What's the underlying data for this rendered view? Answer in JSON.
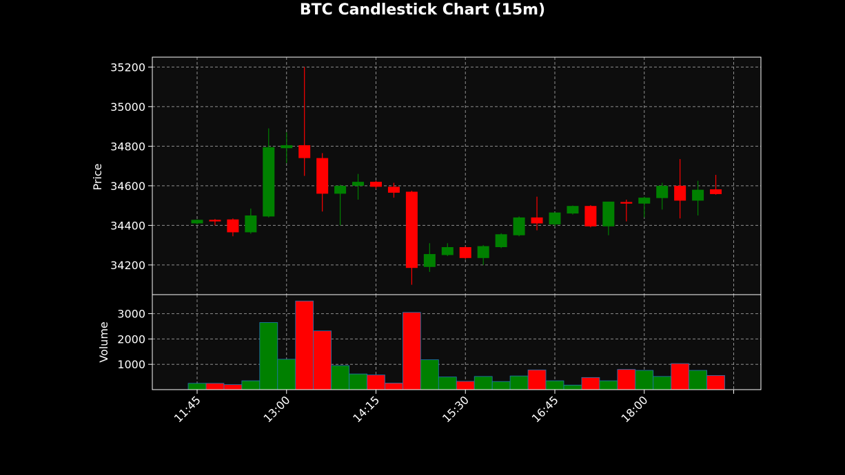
{
  "chart_data": {
    "type": "candlestick",
    "title": "BTC Candlestick Chart (15m)",
    "price_panel": {
      "ylabel": "Price",
      "ylim": [
        34050,
        35250
      ],
      "yticks": [
        34200,
        34400,
        34600,
        34800,
        35000,
        35200
      ],
      "grid": true
    },
    "volume_panel": {
      "ylabel": "Volume",
      "ylim": [
        0,
        3750
      ],
      "yticks": [
        1000,
        2000,
        3000
      ],
      "grid": true
    },
    "x_tick_labels": [
      "11:45",
      "13:00",
      "14:15",
      "15:30",
      "16:45",
      "18:00"
    ],
    "colors": {
      "up": "#008000",
      "down": "#ff0000",
      "panel_bg": "#0d0d0d",
      "figure_bg": "#000000",
      "grid": "#b0b0b0",
      "text": "#ffffff",
      "volume_edge": "#1f77b4"
    },
    "candles": [
      {
        "time": "11:45",
        "open": 34410,
        "high": 34430,
        "low": 34405,
        "close": 34428,
        "volume": 250
      },
      {
        "time": "12:00",
        "open": 34428,
        "high": 34432,
        "low": 34400,
        "close": 34420,
        "volume": 250
      },
      {
        "time": "12:15",
        "open": 34430,
        "high": 34435,
        "low": 34345,
        "close": 34365,
        "volume": 200
      },
      {
        "time": "12:30",
        "open": 34365,
        "high": 34485,
        "low": 34358,
        "close": 34450,
        "volume": 350
      },
      {
        "time": "12:45",
        "open": 34445,
        "high": 34890,
        "low": 34440,
        "close": 34795,
        "volume": 2650
      },
      {
        "time": "13:00",
        "open": 34790,
        "high": 34870,
        "low": 34715,
        "close": 34805,
        "volume": 1200
      },
      {
        "time": "13:15",
        "open": 34805,
        "high": 35200,
        "low": 34650,
        "close": 34740,
        "volume": 3500
      },
      {
        "time": "13:30",
        "open": 34740,
        "high": 34765,
        "low": 34470,
        "close": 34560,
        "volume": 2320
      },
      {
        "time": "13:45",
        "open": 34560,
        "high": 34605,
        "low": 34400,
        "close": 34600,
        "volume": 950
      },
      {
        "time": "14:00",
        "open": 34600,
        "high": 34660,
        "low": 34530,
        "close": 34620,
        "volume": 620
      },
      {
        "time": "14:15",
        "open": 34620,
        "high": 34625,
        "low": 34585,
        "close": 34595,
        "volume": 580
      },
      {
        "time": "14:30",
        "open": 34595,
        "high": 34615,
        "low": 34540,
        "close": 34565,
        "volume": 260
      },
      {
        "time": "14:45",
        "open": 34570,
        "high": 34575,
        "low": 34100,
        "close": 34185,
        "volume": 3050
      },
      {
        "time": "15:00",
        "open": 34190,
        "high": 34310,
        "low": 34165,
        "close": 34255,
        "volume": 1180
      },
      {
        "time": "15:15",
        "open": 34250,
        "high": 34310,
        "low": 34245,
        "close": 34290,
        "volume": 500
      },
      {
        "time": "15:30",
        "open": 34290,
        "high": 34295,
        "low": 34230,
        "close": 34235,
        "volume": 330
      },
      {
        "time": "15:45",
        "open": 34235,
        "high": 34300,
        "low": 34200,
        "close": 34295,
        "volume": 520
      },
      {
        "time": "16:00",
        "open": 34290,
        "high": 34360,
        "low": 34285,
        "close": 34355,
        "volume": 320
      },
      {
        "time": "16:15",
        "open": 34350,
        "high": 34445,
        "low": 34345,
        "close": 34440,
        "volume": 540
      },
      {
        "time": "16:30",
        "open": 34440,
        "high": 34545,
        "low": 34375,
        "close": 34410,
        "volume": 780
      },
      {
        "time": "16:45",
        "open": 34405,
        "high": 34465,
        "low": 34395,
        "close": 34465,
        "volume": 350
      },
      {
        "time": "17:00",
        "open": 34460,
        "high": 34500,
        "low": 34455,
        "close": 34498,
        "volume": 180
      },
      {
        "time": "17:15",
        "open": 34498,
        "high": 34502,
        "low": 34390,
        "close": 34395,
        "volume": 480
      },
      {
        "time": "17:30",
        "open": 34395,
        "high": 34520,
        "low": 34350,
        "close": 34520,
        "volume": 350
      },
      {
        "time": "17:45",
        "open": 34518,
        "high": 34530,
        "low": 34420,
        "close": 34510,
        "volume": 800
      },
      {
        "time": "18:00",
        "open": 34510,
        "high": 34545,
        "low": 34440,
        "close": 34540,
        "volume": 760
      },
      {
        "time": "18:15",
        "open": 34538,
        "high": 34615,
        "low": 34480,
        "close": 34600,
        "volume": 520
      },
      {
        "time": "18:30",
        "open": 34600,
        "high": 34735,
        "low": 34435,
        "close": 34525,
        "volume": 1030
      },
      {
        "time": "18:45",
        "open": 34525,
        "high": 34625,
        "low": 34450,
        "close": 34580,
        "volume": 760
      },
      {
        "time": "19:00",
        "open": 34582,
        "high": 34655,
        "low": 34555,
        "close": 34558,
        "volume": 560
      }
    ]
  }
}
